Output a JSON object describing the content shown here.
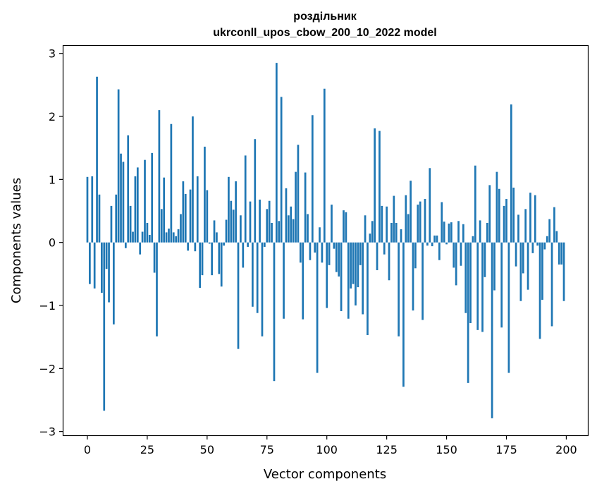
{
  "chart_data": {
    "type": "bar",
    "title": "роздільник",
    "subtitle": "ukrconll_upos_cbow_200_10_2022 model",
    "xlabel": "Vector components",
    "ylabel": "Components values",
    "xlim": [
      -10,
      209
    ],
    "ylim": [
      -3.06,
      3.12
    ],
    "xticks": [
      0,
      25,
      50,
      75,
      100,
      125,
      150,
      175,
      200
    ],
    "xtick_labels": [
      "0",
      "25",
      "50",
      "75",
      "100",
      "125",
      "150",
      "175",
      "200"
    ],
    "yticks": [
      -3,
      -2,
      -1,
      0,
      1,
      2,
      3
    ],
    "ytick_labels": [
      "−3",
      "−2",
      "−1",
      "0",
      "1",
      "2",
      "3"
    ],
    "grid": false,
    "bar_color": "#1f77b4",
    "values": [
      1.04,
      -0.66,
      1.05,
      -0.73,
      2.63,
      0.76,
      -0.8,
      -2.67,
      -0.42,
      -0.95,
      0.58,
      -1.3,
      0.76,
      2.43,
      1.41,
      1.28,
      -0.09,
      1.7,
      0.58,
      0.17,
      1.05,
      1.19,
      -0.19,
      0.17,
      1.31,
      0.31,
      0.12,
      1.42,
      -0.48,
      -1.49,
      2.1,
      0.53,
      1.03,
      0.16,
      0.22,
      1.88,
      0.16,
      0.1,
      0.21,
      0.45,
      0.97,
      0.77,
      -0.13,
      0.84,
      2.0,
      -0.14,
      1.05,
      -0.72,
      -0.52,
      1.52,
      0.83,
      -0.02,
      -0.52,
      0.35,
      0.16,
      -0.5,
      -0.7,
      -0.05,
      0.36,
      1.04,
      0.66,
      0.52,
      0.97,
      -1.69,
      0.43,
      -0.4,
      1.38,
      -0.07,
      0.65,
      -1.02,
      1.64,
      -1.12,
      0.68,
      -1.49,
      -0.07,
      0.53,
      0.66,
      0.31,
      -2.2,
      2.85,
      0.34,
      2.31,
      -1.21,
      0.86,
      0.43,
      0.57,
      0.37,
      1.12,
      1.55,
      -0.32,
      -1.22,
      1.11,
      0.45,
      -0.28,
      2.02,
      -0.16,
      -2.07,
      0.24,
      -0.32,
      2.44,
      -1.04,
      -0.36,
      0.6,
      -0.1,
      -0.47,
      -0.54,
      -1.09,
      0.51,
      0.48,
      -1.21,
      -0.73,
      -0.66,
      -1.0,
      -0.71,
      -0.36,
      -1.14,
      0.43,
      -1.47,
      0.14,
      0.34,
      1.81,
      -0.44,
      1.77,
      0.58,
      -0.19,
      0.57,
      -0.6,
      0.31,
      0.74,
      0.31,
      -1.49,
      0.21,
      -2.29,
      0.75,
      0.45,
      0.98,
      -1.08,
      -0.41,
      0.6,
      0.65,
      -1.23,
      0.69,
      -0.05,
      1.18,
      -0.06,
      0.11,
      0.11,
      -0.28,
      0.64,
      0.33,
      -0.03,
      0.3,
      0.32,
      -0.4,
      -0.68,
      0.34,
      -0.37,
      0.29,
      -1.12,
      -2.23,
      -1.28,
      0.1,
      1.22,
      -1.39,
      0.35,
      -1.42,
      -0.55,
      0.31,
      0.91,
      -2.79,
      -0.76,
      1.12,
      0.85,
      -1.35,
      0.58,
      0.69,
      -2.07,
      2.19,
      0.87,
      -0.38,
      0.44,
      -0.93,
      -0.49,
      0.53,
      -0.75,
      0.79,
      -0.17,
      0.75,
      -0.05,
      -1.53,
      -0.91,
      -0.11,
      0.1,
      0.37,
      -1.33,
      0.56,
      0.18,
      -0.35,
      -0.35,
      -0.93
    ]
  }
}
